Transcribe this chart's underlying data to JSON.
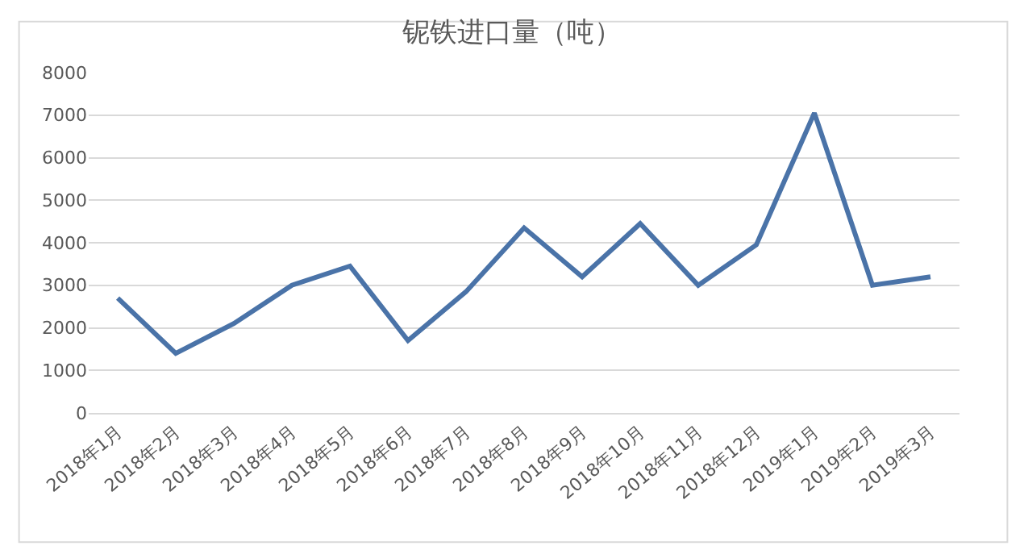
{
  "chart_data": {
    "type": "line",
    "title": "铌铁进口量（吨）",
    "categories": [
      "2018年1月",
      "2018年2月",
      "2018年3月",
      "2018年4月",
      "2018年5月",
      "2018年6月",
      "2018年7月",
      "2018年8月",
      "2018年9月",
      "2018年10月",
      "2018年11月",
      "2018年12月",
      "2019年1月",
      "2019年2月",
      "2019年3月"
    ],
    "series": [
      {
        "color": "#4a73a8",
        "values": [
          2700,
          1400,
          2100,
          3000,
          3450,
          1700,
          2850,
          4350,
          3200,
          4450,
          3000,
          3950,
          7050,
          3000,
          3200
        ]
      }
    ],
    "ylim": [
      0,
      8000
    ],
    "yticks": [
      0,
      1000,
      2000,
      3000,
      4000,
      5000,
      6000,
      7000,
      8000
    ],
    "grid": "y",
    "legend": false,
    "marker": "none",
    "line_style": "solid"
  }
}
